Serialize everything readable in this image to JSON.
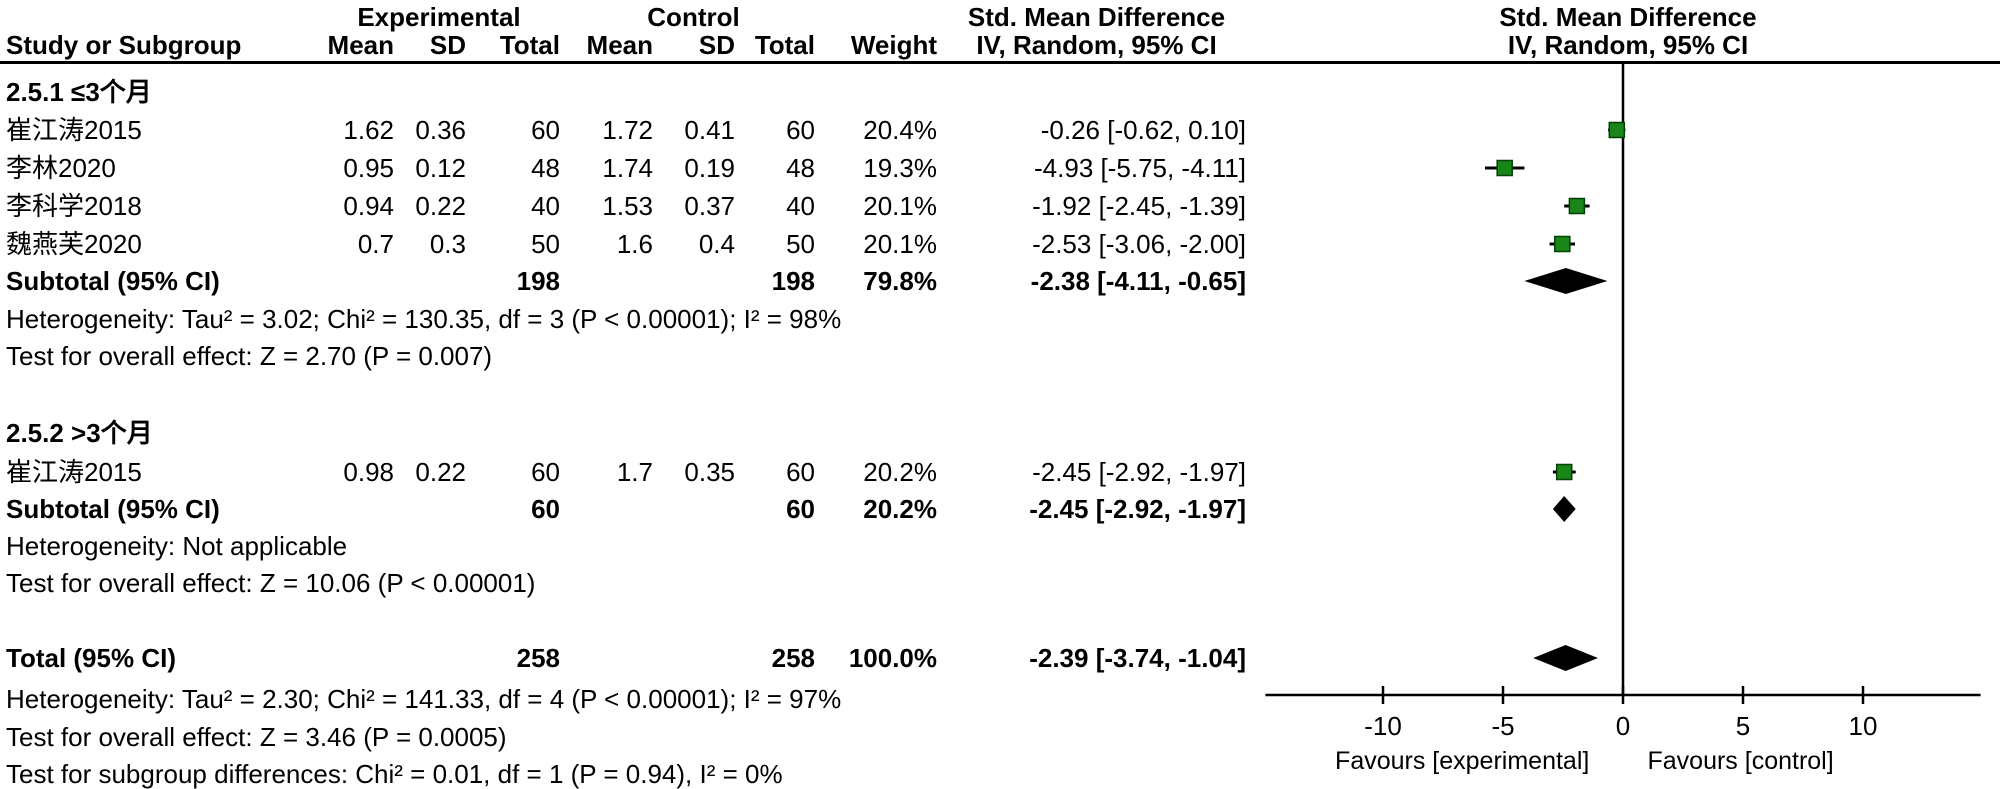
{
  "header": {
    "col_group_experimental": "Experimental",
    "col_group_control": "Control",
    "col_group_smd": "Std. Mean Difference",
    "study_or_subgroup": "Study or Subgroup",
    "mean": "Mean",
    "sd": "SD",
    "total": "Total",
    "weight": "Weight",
    "iv_random": "IV, Random, 95% CI",
    "plot_title": "Std. Mean Difference",
    "plot_subtitle": "IV, Random, 95% CI"
  },
  "rows": [
    {
      "type": "subgroup",
      "study": "2.5.1 ≤3个月"
    },
    {
      "type": "study",
      "study": "崔江涛2015",
      "mean_e": "1.62",
      "sd_e": "0.36",
      "total_e": "60",
      "mean_c": "1.72",
      "sd_c": "0.41",
      "total_c": "60",
      "weight": "20.4%",
      "ci": "-0.26 [-0.62, 0.10]"
    },
    {
      "type": "study",
      "study": "李林2020",
      "mean_e": "0.95",
      "sd_e": "0.12",
      "total_e": "48",
      "mean_c": "1.74",
      "sd_c": "0.19",
      "total_c": "48",
      "weight": "19.3%",
      "ci": "-4.93 [-5.75, -4.11]"
    },
    {
      "type": "study",
      "study": "李科学2018",
      "mean_e": "0.94",
      "sd_e": "0.22",
      "total_e": "40",
      "mean_c": "1.53",
      "sd_c": "0.37",
      "total_c": "40",
      "weight": "20.1%",
      "ci": "-1.92 [-2.45, -1.39]"
    },
    {
      "type": "study",
      "study": "魏燕芙2020",
      "mean_e": "0.7",
      "sd_e": "0.3",
      "total_e": "50",
      "mean_c": "1.6",
      "sd_c": "0.4",
      "total_c": "50",
      "weight": "20.1%",
      "ci": "-2.53 [-3.06, -2.00]"
    },
    {
      "type": "subtotal",
      "study": "Subtotal (95% CI)",
      "total_e": "198",
      "total_c": "198",
      "weight": "79.8%",
      "ci": "-2.38 [-4.11, -0.65]"
    },
    {
      "type": "note",
      "study": "Heterogeneity: Tau² = 3.02; Chi² = 130.35, df = 3 (P < 0.00001); I² = 98%"
    },
    {
      "type": "note",
      "study": "Test for overall effect: Z = 2.70 (P = 0.007)"
    },
    {
      "type": "spacer",
      "study": ""
    },
    {
      "type": "subgroup",
      "study": "2.5.2 >3个月"
    },
    {
      "type": "study",
      "study": "崔江涛2015",
      "mean_e": "0.98",
      "sd_e": "0.22",
      "total_e": "60",
      "mean_c": "1.7",
      "sd_c": "0.35",
      "total_c": "60",
      "weight": "20.2%",
      "ci": "-2.45 [-2.92, -1.97]"
    },
    {
      "type": "subtotal",
      "study": "Subtotal (95% CI)",
      "total_e": "60",
      "total_c": "60",
      "weight": "20.2%",
      "ci": "-2.45 [-2.92, -1.97]"
    },
    {
      "type": "note",
      "study": "Heterogeneity: Not applicable"
    },
    {
      "type": "note",
      "study": "Test for overall effect: Z = 10.06 (P < 0.00001)"
    },
    {
      "type": "spacer",
      "study": ""
    },
    {
      "type": "total",
      "study": "Total (95% CI)",
      "total_e": "258",
      "total_c": "258",
      "weight": "100.0%",
      "ci": "-2.39 [-3.74, -1.04]"
    },
    {
      "type": "note",
      "study": "Heterogeneity: Tau² = 2.30; Chi² = 141.33, df = 4 (P < 0.00001); I² = 97%"
    },
    {
      "type": "note",
      "study": "Test for overall effect: Z = 3.46 (P = 0.0005)"
    },
    {
      "type": "note",
      "study": "Test for subgroup differences: Chi² = 0.01, df = 1 (P = 0.94), I² = 0%"
    }
  ],
  "chart_data": {
    "type": "forest",
    "effect_measure": "Std. Mean Difference, IV, Random, 95% CI",
    "x_axis": {
      "ticks": [
        -10,
        -5,
        0,
        5,
        10
      ],
      "range": [
        -14.9,
        14.9
      ],
      "zero_line": 0
    },
    "favours_left": "Favours [experimental]",
    "favours_right": "Favours [control]",
    "studies": [
      {
        "label": "崔江涛2015 (≤3个月)",
        "est": -0.26,
        "lo": -0.62,
        "hi": 0.1,
        "weight": 20.4,
        "row": 1
      },
      {
        "label": "李林2020",
        "est": -4.93,
        "lo": -5.75,
        "hi": -4.11,
        "weight": 19.3,
        "row": 2
      },
      {
        "label": "李科学2018",
        "est": -1.92,
        "lo": -2.45,
        "hi": -1.39,
        "weight": 20.1,
        "row": 3
      },
      {
        "label": "魏燕芙2020",
        "est": -2.53,
        "lo": -3.06,
        "hi": -2.0,
        "weight": 20.1,
        "row": 4
      },
      {
        "label": "崔江涛2015 (>3个月)",
        "est": -2.45,
        "lo": -2.92,
        "hi": -1.97,
        "weight": 20.2,
        "row": 10
      }
    ],
    "diamonds": [
      {
        "label": "Subtotal ≤3个月",
        "est": -2.38,
        "lo": -4.11,
        "hi": -0.65,
        "row": 5
      },
      {
        "label": "Subtotal >3个月",
        "est": -2.45,
        "lo": -2.92,
        "hi": -1.97,
        "row": 11
      },
      {
        "label": "Total",
        "est": -2.39,
        "lo": -3.74,
        "hi": -1.04,
        "row": 15
      }
    ]
  },
  "colors": {
    "marker_fill": "#1a861a",
    "marker_stroke": "#004000",
    "diamond": "#000000",
    "line": "#000000"
  }
}
